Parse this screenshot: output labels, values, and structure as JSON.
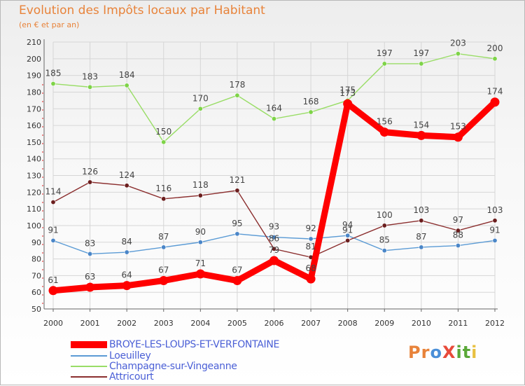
{
  "header": {
    "title": "Evolution des Impôts locaux par Habitant",
    "subtitle": "(en € et par an)"
  },
  "logo": {
    "text": "ProXiti",
    "letters": [
      "P",
      "r",
      "o",
      "X",
      "i",
      "t",
      "i"
    ],
    "colors": [
      "#e8833a",
      "#e8833a",
      "#4a8fd8",
      "#e84a3a",
      "#5aa838",
      "#5aa838",
      "#e8c040"
    ]
  },
  "chart_data": {
    "type": "line",
    "title": "Evolution des Impôts locaux par Habitant",
    "subtitle": "(en € et par an)",
    "xlabel": "",
    "ylabel": "",
    "categories": [
      "2000",
      "2001",
      "2002",
      "2003",
      "2004",
      "2005",
      "2006",
      "2007",
      "2008",
      "2009",
      "2010",
      "2011",
      "2012"
    ],
    "ylim": [
      50,
      210
    ],
    "yticks": [
      50,
      60,
      70,
      80,
      90,
      100,
      110,
      120,
      130,
      140,
      150,
      160,
      170,
      180,
      190,
      200,
      210
    ],
    "grid": true,
    "legend_position": "bottom-left",
    "series": [
      {
        "name": "BROYE-LES-LOUPS-ET-VERFONTAINE",
        "color": "#ff0000",
        "bold": true,
        "values": [
          61,
          63,
          64,
          67,
          71,
          67,
          79,
          68,
          173,
          156,
          154,
          153,
          174
        ]
      },
      {
        "name": "Loeuilley",
        "color": "#5b9bd5",
        "marker": "#4a86c8",
        "values": [
          91,
          83,
          84,
          87,
          90,
          95,
          93,
          92,
          94,
          85,
          87,
          88,
          91
        ]
      },
      {
        "name": "Champagne-sur-Vingeanne",
        "color": "#99dd66",
        "marker": "#7ed348",
        "values": [
          185,
          183,
          184,
          150,
          170,
          178,
          164,
          168,
          175,
          197,
          197,
          203,
          200
        ]
      },
      {
        "name": "Attricourt",
        "color": "#8b2e2e",
        "marker": "#6b1e1e",
        "values": [
          114,
          126,
          124,
          116,
          118,
          121,
          86,
          81,
          91,
          100,
          103,
          97,
          103
        ]
      }
    ]
  }
}
